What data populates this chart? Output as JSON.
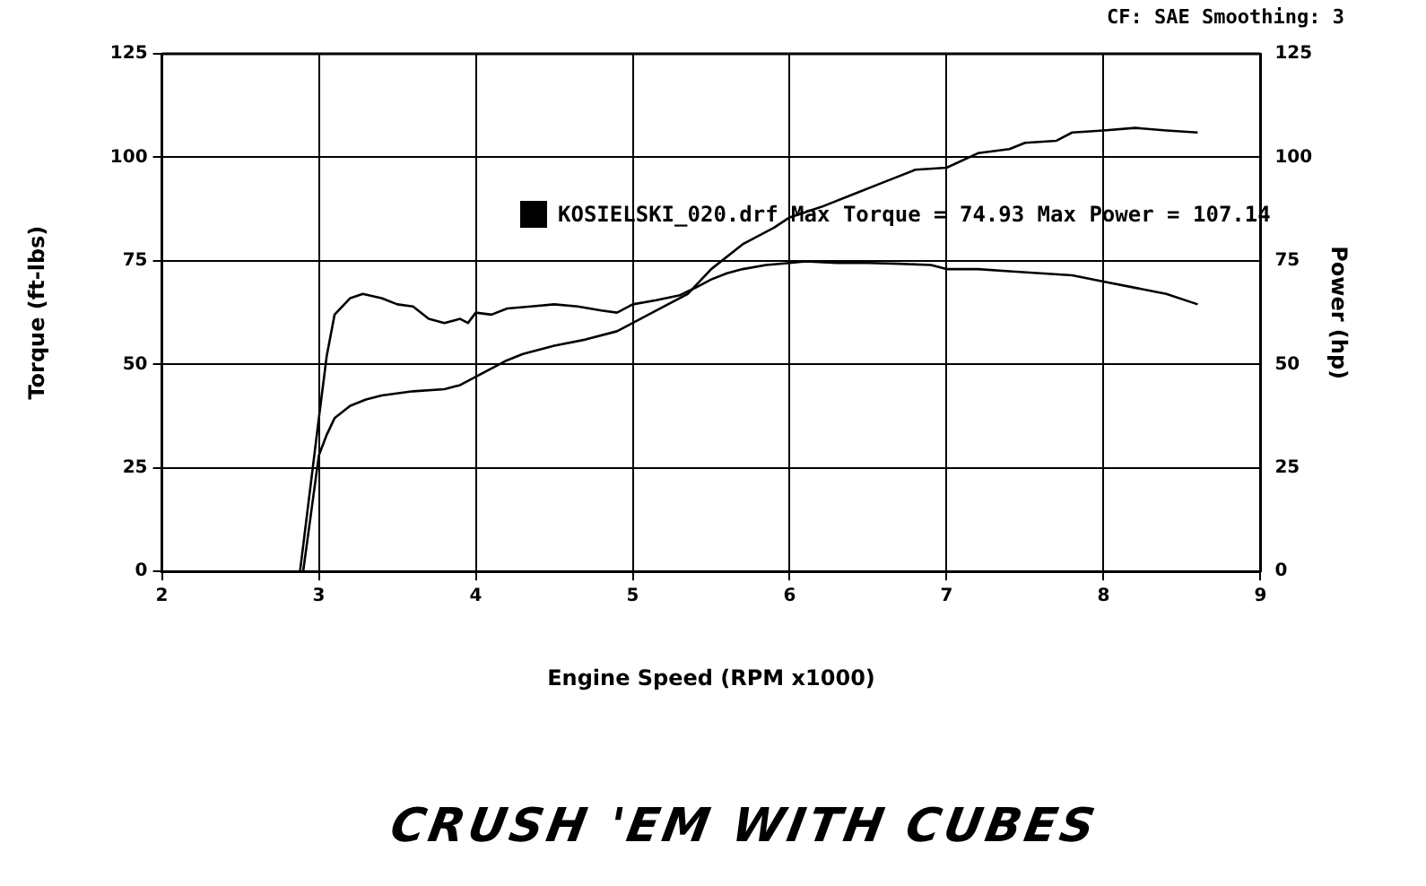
{
  "chart_data": {
    "type": "line",
    "xlabel": "Engine Speed (RPM x1000)",
    "ylabel": "Torque (ft-lbs)",
    "y2label": "Power (hp)",
    "annotations": [
      "CF: SAE  Smoothing: 3",
      "KOSIELSKI_020.drf Max Torque = 74.93    Max Power = 107.14",
      "CRUSH 'EM WITH CUBES"
    ],
    "xlim": [
      2,
      9
    ],
    "xticks": [
      2,
      3,
      4,
      5,
      6,
      7,
      8,
      9
    ],
    "ylim": [
      0,
      125
    ],
    "yticks": [
      0,
      25,
      50,
      75,
      100,
      125
    ],
    "y2lim": [
      0,
      125
    ],
    "y2ticks": [
      0,
      25,
      50,
      75,
      100,
      125
    ],
    "grid": true,
    "legend": false,
    "marker": "none",
    "line_style": "solid",
    "series": [
      {
        "color": "#000000",
        "x": [
          2.88,
          3.0,
          3.05,
          3.1,
          3.2,
          3.28,
          3.4,
          3.5,
          3.6,
          3.7,
          3.8,
          3.9,
          3.95,
          4.0,
          4.1,
          4.2,
          4.35,
          4.5,
          4.65,
          4.8,
          4.9,
          5.0,
          5.15,
          5.3,
          5.4,
          5.5,
          5.6,
          5.7,
          5.85,
          6.0,
          6.1,
          6.3,
          6.5,
          6.7,
          6.9,
          7.0,
          7.2,
          7.4,
          7.6,
          7.8,
          8.0,
          8.2,
          8.4,
          8.6
        ],
        "values": [
          0,
          37,
          52,
          62,
          66,
          67,
          66,
          64.5,
          64,
          61,
          60,
          61,
          60,
          62.5,
          62,
          63.5,
          64,
          64.5,
          64,
          63,
          62.5,
          64.5,
          65.5,
          66.7,
          68.5,
          70.5,
          72,
          73,
          74,
          74.5,
          74.9,
          74.5,
          74.5,
          74.3,
          74,
          73,
          73,
          72.5,
          72,
          71.5,
          70,
          68.5,
          67,
          64.5
        ]
      },
      {
        "color": "#000000",
        "x": [
          2.9,
          3.0,
          3.05,
          3.1,
          3.2,
          3.3,
          3.4,
          3.6,
          3.8,
          3.9,
          4.0,
          4.1,
          4.2,
          4.3,
          4.5,
          4.7,
          4.9,
          5.0,
          5.1,
          5.2,
          5.35,
          5.5,
          5.7,
          5.9,
          6.0,
          6.2,
          6.4,
          6.6,
          6.8,
          7.0,
          7.2,
          7.4,
          7.5,
          7.7,
          7.8,
          8.0,
          8.2,
          8.4,
          8.6
        ],
        "values": [
          0,
          28,
          33,
          37,
          40,
          41.5,
          42.5,
          43.5,
          44,
          45,
          47,
          49,
          51,
          52.5,
          54.5,
          56,
          58,
          60,
          62,
          64,
          67,
          73,
          79,
          83,
          85.5,
          88,
          91,
          94,
          97,
          97.5,
          101,
          102,
          103.5,
          104,
          106,
          106.5,
          107.1,
          106.5,
          106
        ]
      }
    ]
  }
}
